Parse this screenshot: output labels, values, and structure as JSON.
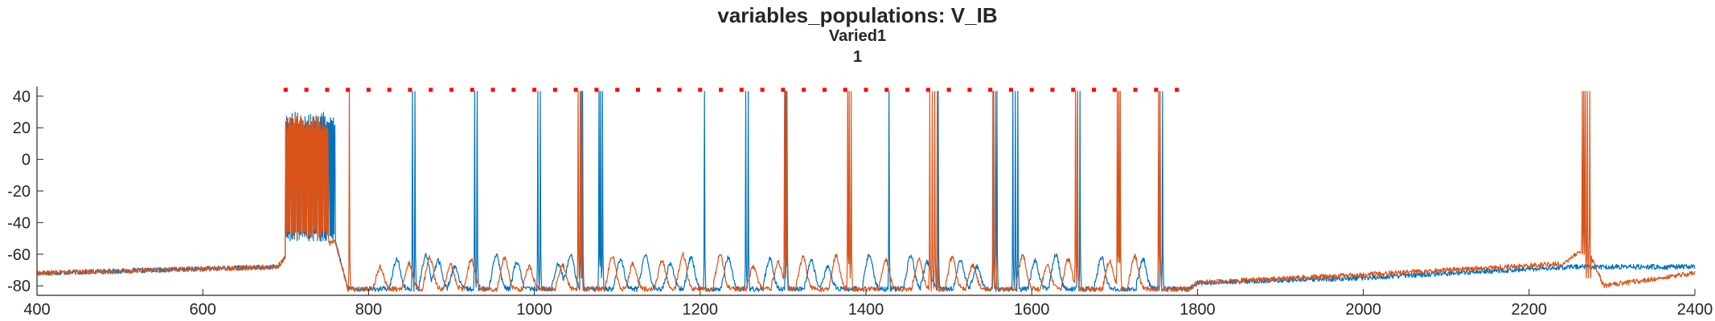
{
  "chart_data": {
    "type": "line",
    "title": "variables_populations: V_IB",
    "subtitle": "Varied1",
    "subsubtitle": "1",
    "xlim": [
      400,
      2400
    ],
    "ylim": [
      -86,
      46
    ],
    "xticks": [
      400,
      600,
      800,
      1000,
      1200,
      1400,
      1600,
      1800,
      2000,
      2200,
      2400
    ],
    "yticks": [
      -80,
      -60,
      -40,
      -20,
      0,
      20,
      40
    ],
    "colors": {
      "blue": "#0072BD",
      "orange": "#D95319",
      "raster": "#FF0000"
    },
    "raster": {
      "y": 44,
      "x_start": 700,
      "x_end": 1775,
      "step": 25
    },
    "series": [
      {
        "color": "blue",
        "baseline_segments": [
          [
            400,
            -72
          ],
          [
            690,
            -68
          ],
          [
            700,
            -62
          ],
          [
            760,
            -52
          ],
          [
            775,
            -82
          ],
          [
            1790,
            -82
          ],
          [
            1800,
            -78
          ],
          [
            2000,
            -75
          ],
          [
            2250,
            -68
          ],
          [
            2400,
            -68
          ]
        ],
        "plateau": [
          700,
          760,
          -52,
          30
        ],
        "spikes": [
          853,
          856,
          928,
          931,
          1004,
          1007,
          1056,
          1058,
          1078,
          1080,
          1082,
          1205,
          1255,
          1258,
          1303,
          1305,
          1428,
          1487,
          1554,
          1558,
          1577,
          1580,
          1583,
          1655,
          1658,
          1755,
          1758
        ],
        "bumps": [
          830,
          865,
          880,
          900,
          950,
          975,
          1025,
          1040,
          1100,
          1130,
          1160,
          1185,
          1230,
          1280,
          1330,
          1350,
          1400,
          1450,
          1470,
          1510,
          1530,
          1600,
          1625,
          1680,
          1730
        ]
      },
      {
        "color": "orange",
        "baseline_segments": [
          [
            400,
            -72
          ],
          [
            690,
            -68
          ],
          [
            700,
            -62
          ],
          [
            760,
            -52
          ],
          [
            775,
            -82
          ],
          [
            1790,
            -82
          ],
          [
            1800,
            -78
          ],
          [
            2000,
            -73
          ],
          [
            2240,
            -66
          ],
          [
            2262,
            -58
          ],
          [
            2275,
            -62
          ],
          [
            2290,
            -80
          ],
          [
            2400,
            -72
          ]
        ],
        "plateau": [
          700,
          752,
          -50,
          28
        ],
        "spikes": [
          777,
          1053,
          1055,
          1057,
          1302,
          1304,
          1378,
          1380,
          1382,
          1477,
          1480,
          1483,
          1486,
          1553,
          1556,
          1653,
          1655,
          1703,
          1705,
          1707,
          1753,
          1755,
          2264,
          2266,
          2268,
          2270,
          2273
        ],
        "bumps": [
          810,
          845,
          870,
          895,
          920,
          960,
          990,
          1030,
          1090,
          1115,
          1150,
          1175,
          1220,
          1260,
          1290,
          1320,
          1360,
          1420,
          1460,
          1500,
          1525,
          1585,
          1615,
          1640,
          1690,
          1720
        ]
      }
    ]
  }
}
